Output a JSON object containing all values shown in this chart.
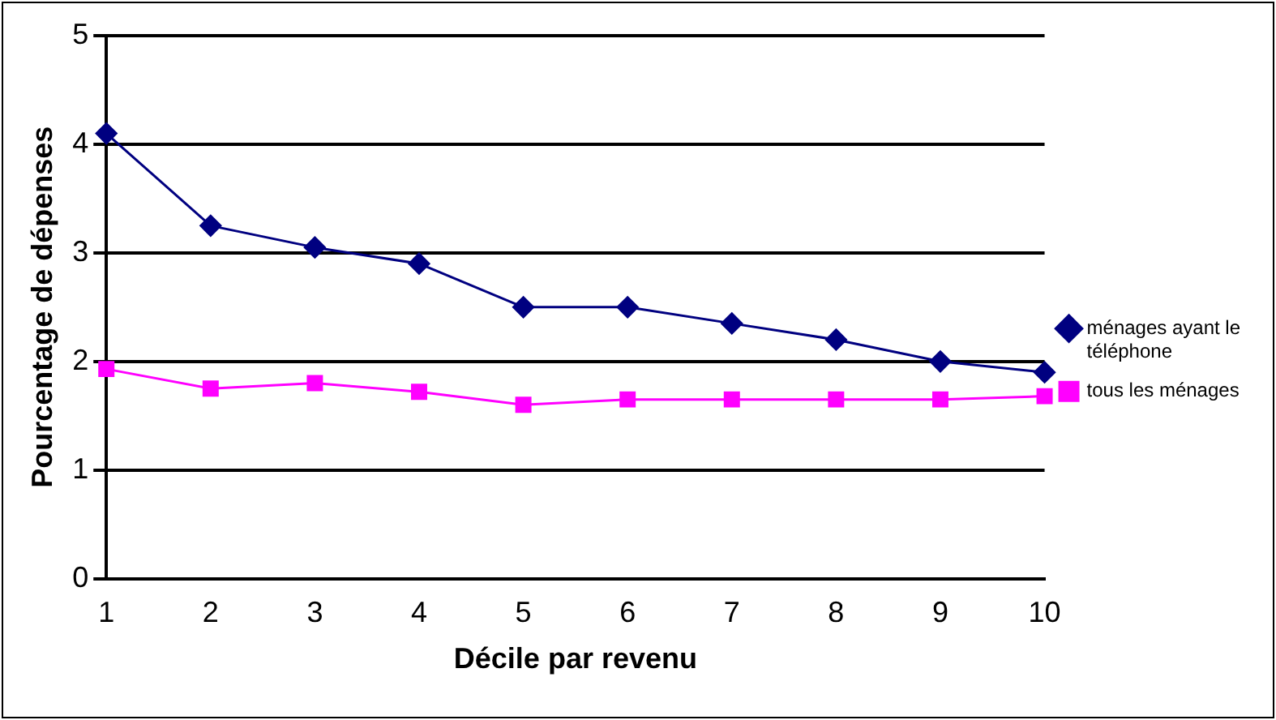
{
  "chart_data": {
    "type": "line",
    "xlabel": "Décile par revenu",
    "ylabel": "Pourcentage de dépenses",
    "categories": [
      "1",
      "2",
      "3",
      "4",
      "5",
      "6",
      "7",
      "8",
      "9",
      "10"
    ],
    "series": [
      {
        "name": "ménages ayant le téléphone",
        "color": "#000080",
        "marker": "diamond",
        "values": [
          4.1,
          3.25,
          3.05,
          2.9,
          2.5,
          2.5,
          2.35,
          2.2,
          2.0,
          1.9
        ]
      },
      {
        "name": "tous les ménages",
        "color": "#ff00ff",
        "marker": "square",
        "values": [
          1.93,
          1.75,
          1.8,
          1.72,
          1.6,
          1.65,
          1.65,
          1.65,
          1.65,
          1.68
        ]
      }
    ],
    "ylim": [
      0,
      5
    ],
    "yticks": [
      0,
      1,
      2,
      3,
      4,
      5
    ],
    "grid": "y",
    "legend": "right"
  }
}
